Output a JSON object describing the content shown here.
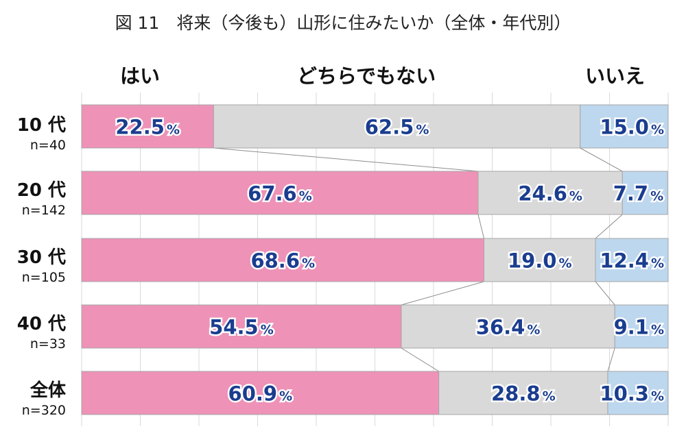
{
  "title": "図 11　将来（今後も）山形に住みたいか（全体・年代別）",
  "chart_data": {
    "type": "bar",
    "stacked": "100%",
    "orientation": "horizontal",
    "title": "図 11　将来（今後も）山形に住みたいか（全体・年代別）",
    "categories": [
      {
        "label": "10 代",
        "n": "n=40"
      },
      {
        "label": "20 代",
        "n": "n=142"
      },
      {
        "label": "30 代",
        "n": "n=105"
      },
      {
        "label": "40 代",
        "n": "n=33"
      },
      {
        "label": "全体",
        "n": "n=320"
      }
    ],
    "series": [
      {
        "name": "はい",
        "color": "#ee92b7",
        "values": [
          22.5,
          67.6,
          68.6,
          54.5,
          60.9
        ]
      },
      {
        "name": "どちらでもない",
        "color": "#d9d9d9",
        "values": [
          62.5,
          24.6,
          19.0,
          36.4,
          28.8
        ]
      },
      {
        "name": "いいえ",
        "color": "#bdd7ee",
        "values": [
          15.0,
          7.7,
          12.4,
          9.1,
          10.3
        ]
      }
    ],
    "value_suffix": "%",
    "xlim": [
      0,
      100
    ],
    "grid": true,
    "legend": "top"
  }
}
